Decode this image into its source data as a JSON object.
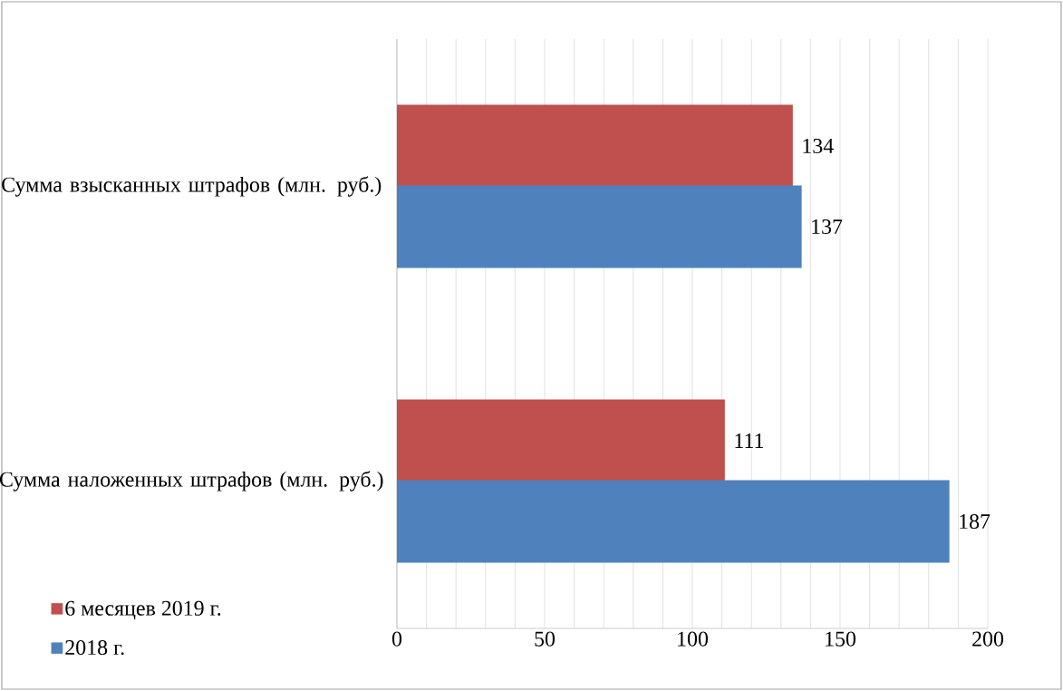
{
  "chart_data": {
    "type": "bar",
    "orientation": "horizontal",
    "categories": [
      "Сумма взысканных штрафов (млн. руб.)",
      "Сумма наложенных штрафов (млн. руб.)"
    ],
    "series": [
      {
        "name": "6 месяцев 2019 г.",
        "color": "#c0504d",
        "values": [
          134,
          111
        ]
      },
      {
        "name": "2018 г.",
        "color": "#4f81bd",
        "values": [
          137,
          187
        ]
      }
    ],
    "xlim": [
      0,
      200
    ],
    "xticks": [
      0,
      {
        "value": 10,
        "label": null
      },
      {
        "value": 20,
        "label": null
      },
      {
        "value": 30,
        "label": null
      },
      {
        "value": 40,
        "label": null
      },
      50,
      {
        "value": 60,
        "label": null
      },
      {
        "value": 70,
        "label": null
      },
      {
        "value": 80,
        "label": null
      },
      {
        "value": 90,
        "label": null
      },
      100,
      {
        "value": 110,
        "label": null
      },
      {
        "value": 120,
        "label": null
      },
      {
        "value": 130,
        "label": null
      },
      {
        "value": 140,
        "label": null
      },
      150,
      {
        "value": 160,
        "label": null
      },
      {
        "value": 170,
        "label": null
      },
      {
        "value": 180,
        "label": null
      },
      {
        "value": 190,
        "label": null
      },
      200
    ],
    "grid": "x",
    "legend": "bottom left",
    "data_labels": true
  }
}
